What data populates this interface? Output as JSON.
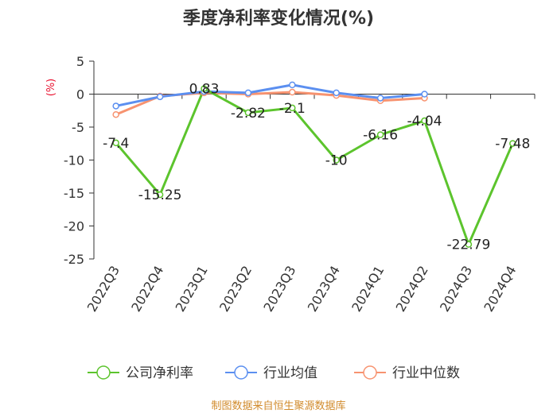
{
  "colors": {
    "company": "#5cc42d",
    "industry_avg": "#5b8ff0",
    "industry_median": "#f79370",
    "unit": "#e8102e",
    "source": "#d18b2c",
    "axis": "#333333"
  },
  "chart_data": {
    "type": "line",
    "title": "季度净利率变化情况(%)",
    "ylabel": "(%)",
    "ylim": [
      -25,
      5
    ],
    "yticks": [
      5,
      0,
      -5,
      -10,
      -15,
      -20,
      -25
    ],
    "grid": false,
    "legend_position": "bottom",
    "categories": [
      "2022Q3",
      "2022Q4",
      "2023Q1",
      "2023Q2",
      "2023Q3",
      "2023Q4",
      "2024Q1",
      "2024Q2",
      "2024Q3",
      "2024Q4"
    ],
    "series": [
      {
        "name": "公司净利率",
        "color_key": "company",
        "values": [
          -7.4,
          -15.25,
          0.83,
          -2.82,
          -2.1,
          -10,
          -6.16,
          -4.04,
          -22.79,
          -7.48
        ],
        "labels": [
          "-7.4",
          "-15.25",
          "0.83",
          "-2.82",
          "-2.1",
          "-10",
          "-6.16",
          "-4.04",
          "-22.79",
          "-7.48"
        ]
      },
      {
        "name": "行业均值",
        "color_key": "industry_avg",
        "values": [
          -1.8,
          -0.4,
          0.4,
          0.2,
          1.4,
          0.2,
          -0.6,
          0.0,
          null,
          null
        ]
      },
      {
        "name": "行业中位数",
        "color_key": "industry_median",
        "values": [
          -3.1,
          -0.3,
          0.2,
          0.0,
          0.3,
          -0.2,
          -1.0,
          -0.6,
          null,
          null
        ]
      }
    ]
  },
  "source": "制图数据来自恒生聚源数据库"
}
